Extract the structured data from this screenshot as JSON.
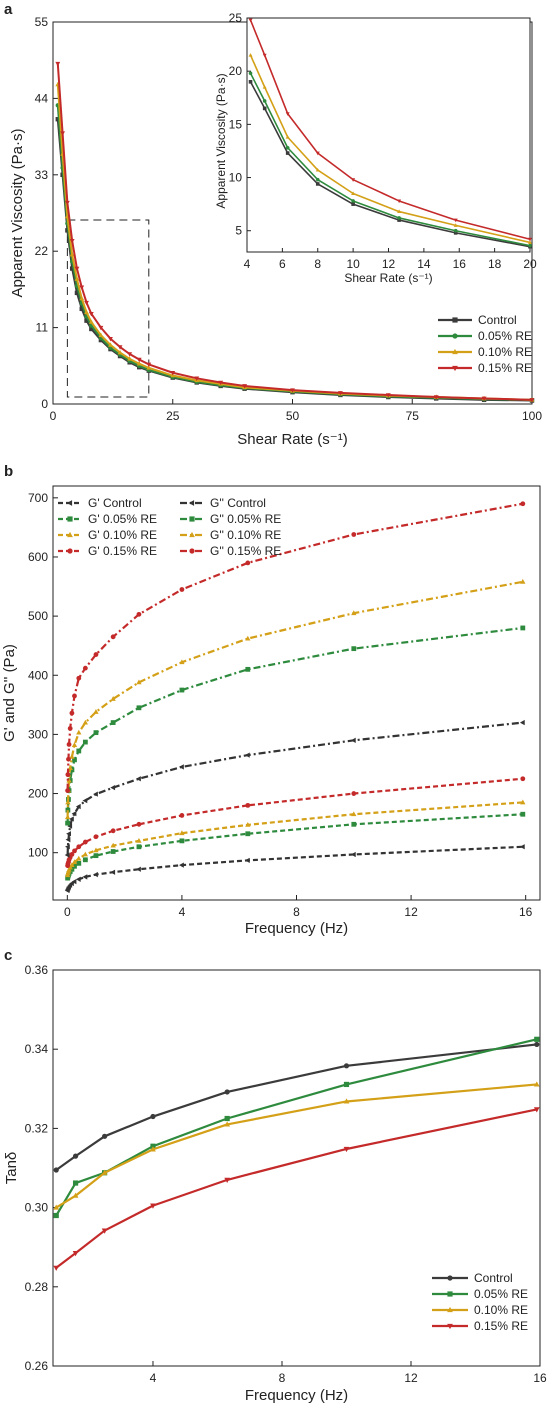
{
  "chart_data": [
    {
      "panel": "a",
      "type": "line",
      "xlabel": "Shear Rate (s⁻¹)",
      "ylabel": "Apparent Viscosity (Pa·s)",
      "xlim": [
        0,
        100
      ],
      "ylim": [
        0,
        55
      ],
      "x_ticks": [
        "0",
        "25",
        "50",
        "75",
        "100"
      ],
      "y_ticks": [
        "0",
        "11",
        "22",
        "33",
        "44",
        "55"
      ],
      "legend_position": "bottom-right",
      "legend": [
        "Control",
        "0.05% RE",
        "0.10% RE",
        "0.15% RE"
      ],
      "x": [
        1,
        2,
        3,
        4,
        5,
        6,
        7,
        8,
        10,
        12,
        14,
        16,
        18,
        20,
        25,
        30,
        35,
        40,
        50,
        60,
        70,
        80,
        90,
        100
      ],
      "series": [
        {
          "name": "Control",
          "color": "#3b3b3b",
          "marker": "square",
          "values": [
            41,
            33,
            25,
            19.5,
            16,
            13.7,
            12,
            10.8,
            9.2,
            7.9,
            6.9,
            6.0,
            5.3,
            4.8,
            3.8,
            3.1,
            2.6,
            2.2,
            1.7,
            1.3,
            1.0,
            0.8,
            0.6,
            0.5
          ]
        },
        {
          "name": "0.05% RE",
          "color": "#2e8b3e",
          "marker": "circle",
          "values": [
            43,
            34,
            26,
            20.5,
            17,
            14.5,
            12.6,
            11.3,
            9.5,
            8.1,
            7.1,
            6.2,
            5.5,
            4.9,
            3.9,
            3.2,
            2.7,
            2.3,
            1.8,
            1.4,
            1.1,
            0.9,
            0.7,
            0.6
          ]
        },
        {
          "name": "0.10% RE",
          "color": "#d4a017",
          "marker": "triangle-up",
          "values": [
            46,
            36,
            27,
            21.5,
            18,
            15.2,
            13.2,
            11.8,
            9.9,
            8.5,
            7.4,
            6.5,
            5.8,
            5.2,
            4.1,
            3.4,
            2.9,
            2.4,
            1.9,
            1.5,
            1.2,
            1.0,
            0.8,
            0.6
          ]
        },
        {
          "name": "0.15% RE",
          "color": "#c42a2a",
          "marker": "triangle-down",
          "values": [
            49,
            39,
            29,
            23.5,
            19.5,
            16.8,
            14.6,
            13.0,
            11.0,
            9.4,
            8.2,
            7.2,
            6.4,
            5.7,
            4.5,
            3.7,
            3.1,
            2.6,
            2.0,
            1.6,
            1.3,
            1.0,
            0.8,
            0.6
          ]
        }
      ],
      "inset": {
        "xlabel": "Shear Rate (s⁻¹)",
        "ylabel": "Apparent Viscosity (Pa·s)",
        "xlim": [
          4,
          20
        ],
        "ylim": [
          3,
          25
        ],
        "x_ticks": [
          "4",
          "6",
          "8",
          "10",
          "12",
          "14",
          "16",
          "18",
          "20"
        ],
        "y_ticks": [
          "5",
          "10",
          "15",
          "20",
          "25"
        ],
        "x": [
          4.2,
          5,
          6.3,
          8,
          10,
          12.6,
          15.8,
          20
        ],
        "series": [
          {
            "name": "Control",
            "values": [
              19.0,
              16.5,
              12.3,
              9.4,
              7.5,
              6.0,
              4.8,
              3.5
            ]
          },
          {
            "name": "0.05% RE",
            "values": [
              19.8,
              17.2,
              12.8,
              9.8,
              7.8,
              6.2,
              5.0,
              3.6
            ]
          },
          {
            "name": "0.10% RE",
            "values": [
              21.5,
              18.5,
              13.8,
              10.7,
              8.5,
              6.8,
              5.5,
              3.9
            ]
          },
          {
            "name": "0.15% RE",
            "values": [
              24.8,
              21.5,
              16.0,
              12.3,
              9.8,
              7.8,
              6.0,
              4.2
            ]
          }
        ]
      },
      "dashed_box": {
        "x": [
          3,
          20
        ],
        "y": [
          1,
          26.5
        ]
      }
    },
    {
      "panel": "b",
      "type": "line",
      "xlabel": "Frequency (Hz)",
      "ylabel": "G' and G'' (Pa)",
      "xlim": [
        -0.5,
        16.5
      ],
      "ylim": [
        20,
        720
      ],
      "x_ticks": [
        "0",
        "4",
        "8",
        "12",
        "16"
      ],
      "y_ticks": [
        "100",
        "200",
        "300",
        "400",
        "500",
        "600",
        "700"
      ],
      "legend_position": "top-left",
      "legend": [
        "G' Control",
        "G'' Control",
        "G' 0.05% RE",
        "G'' 0.05% RE",
        "G' 0.10% RE",
        "G'' 0.10% RE",
        "G' 0.15% RE",
        "G'' 0.15% RE"
      ],
      "x": [
        0.01,
        0.02,
        0.04,
        0.06,
        0.1,
        0.16,
        0.25,
        0.4,
        0.63,
        1.0,
        1.6,
        2.5,
        4.0,
        6.3,
        10.0,
        15.9
      ],
      "series": [
        {
          "name": "G' Control",
          "color": "#333333",
          "dash": "dash",
          "marker": "triangle-left",
          "values": [
            36,
            38,
            40,
            42,
            45,
            48,
            51,
            55,
            59,
            63,
            67,
            72,
            79,
            87,
            97,
            110
          ]
        },
        {
          "name": "G' 0.05% RE",
          "color": "#2e8b3e",
          "dash": "dash",
          "marker": "square",
          "values": [
            57,
            59,
            62,
            65,
            68,
            72,
            77,
            82,
            88,
            95,
            102,
            110,
            120,
            132,
            148,
            165
          ]
        },
        {
          "name": "G' 0.10% RE",
          "color": "#d4a017",
          "dash": "dash",
          "marker": "triangle-up",
          "values": [
            62,
            65,
            68,
            71,
            75,
            79,
            84,
            90,
            97,
            104,
            112,
            120,
            133,
            147,
            165,
            185
          ]
        },
        {
          "name": "G' 0.15% RE",
          "color": "#c42a2a",
          "dash": "dash",
          "marker": "circle",
          "values": [
            78,
            81,
            84,
            88,
            92,
            97,
            103,
            110,
            118,
            127,
            137,
            148,
            163,
            180,
            200,
            225
          ]
        },
        {
          "name": "G'' Control",
          "color": "#333333",
          "dash": "dashdot",
          "marker": "triangle-left",
          "values": [
            96,
            110,
            122,
            132,
            145,
            157,
            166,
            178,
            188,
            199,
            210,
            225,
            245,
            265,
            290,
            320
          ]
        },
        {
          "name": "G'' 0.05% RE",
          "color": "#2e8b3e",
          "dash": "dashdot",
          "marker": "square",
          "values": [
            150,
            172,
            190,
            205,
            222,
            240,
            257,
            272,
            287,
            303,
            320,
            345,
            375,
            410,
            445,
            480
          ]
        },
        {
          "name": "G'' 0.10% RE",
          "color": "#d4a017",
          "dash": "dashdot",
          "marker": "triangle-up",
          "values": [
            160,
            185,
            205,
            222,
            243,
            262,
            282,
            303,
            320,
            338,
            360,
            388,
            422,
            462,
            505,
            558
          ]
        },
        {
          "name": "G'' 0.15% RE",
          "color": "#c42a2a",
          "dash": "dashdot",
          "marker": "circle",
          "values": [
            205,
            232,
            258,
            283,
            310,
            336,
            365,
            395,
            412,
            435,
            465,
            503,
            545,
            590,
            638,
            690
          ]
        }
      ]
    },
    {
      "panel": "c",
      "type": "line",
      "xlabel": "Frequency (Hz)",
      "ylabel": "Tanδ",
      "xlim": [
        0.9,
        16
      ],
      "ylim": [
        0.26,
        0.36
      ],
      "x_ticks": [
        "4",
        "8",
        "12",
        "16"
      ],
      "y_ticks": [
        "0.26",
        "0.28",
        "0.30",
        "0.32",
        "0.34",
        "0.36"
      ],
      "legend_position": "bottom-right",
      "legend": [
        "Control",
        "0.05% RE",
        "0.10% RE",
        "0.15% RE"
      ],
      "x": [
        1.0,
        1.6,
        2.5,
        4.0,
        6.3,
        10.0,
        15.9
      ],
      "series": [
        {
          "name": "Control",
          "color": "#3b3b3b",
          "marker": "circle",
          "values": [
            0.3095,
            0.313,
            0.318,
            0.323,
            0.3292,
            0.3358,
            0.3412
          ]
        },
        {
          "name": "0.05% RE",
          "color": "#2e8b3e",
          "marker": "square",
          "values": [
            0.298,
            0.3062,
            0.3088,
            0.3155,
            0.3225,
            0.3311,
            0.3425
          ]
        },
        {
          "name": "0.10% RE",
          "color": "#d4a017",
          "marker": "triangle-up",
          "values": [
            0.3,
            0.303,
            0.3088,
            0.3147,
            0.321,
            0.3268,
            0.3311
          ]
        },
        {
          "name": "0.15% RE",
          "color": "#c42a2a",
          "marker": "triangle-down",
          "values": [
            0.2848,
            0.2885,
            0.2942,
            0.3005,
            0.307,
            0.3148,
            0.3248
          ]
        }
      ]
    }
  ]
}
